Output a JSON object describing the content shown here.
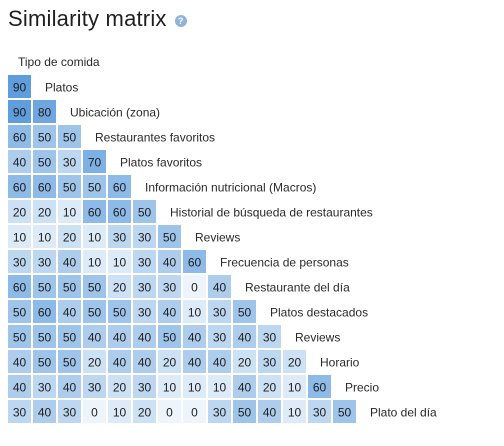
{
  "header": {
    "title": "Similarity matrix",
    "help_icon": "question-circle-icon"
  },
  "chart_data": {
    "type": "heatmap",
    "title": "Similarity matrix",
    "layout": "lower-triangular",
    "labels": [
      "Tipo de comida",
      "Platos",
      "Ubicación (zona)",
      "Restaurantes favoritos",
      "Platos favoritos",
      "Información nutricional (Macros)",
      "Historial de búsqueda de restaurantes",
      "Reviews",
      "Frecuencia de personas",
      "Restaurante del día",
      "Platos destacados",
      "Reviews",
      "Horario",
      "Precio",
      "Plato del día"
    ],
    "rows": [
      [
        90
      ],
      [
        90,
        80
      ],
      [
        60,
        50,
        50
      ],
      [
        40,
        50,
        30,
        70
      ],
      [
        60,
        60,
        50,
        50,
        60
      ],
      [
        20,
        20,
        10,
        60,
        60,
        50
      ],
      [
        10,
        10,
        20,
        10,
        30,
        30,
        50
      ],
      [
        30,
        30,
        40,
        10,
        10,
        30,
        40,
        60
      ],
      [
        60,
        50,
        50,
        50,
        20,
        30,
        30,
        0,
        40
      ],
      [
        50,
        60,
        40,
        50,
        50,
        30,
        40,
        10,
        30,
        50
      ],
      [
        50,
        50,
        50,
        40,
        40,
        40,
        50,
        40,
        30,
        40,
        30
      ],
      [
        40,
        50,
        50,
        20,
        40,
        40,
        20,
        40,
        40,
        20,
        30,
        20
      ],
      [
        40,
        30,
        40,
        30,
        20,
        30,
        10,
        10,
        10,
        40,
        20,
        10,
        60
      ],
      [
        30,
        40,
        30,
        0,
        10,
        20,
        0,
        0,
        30,
        50,
        40,
        10,
        30,
        50
      ]
    ],
    "value_range": [
      0,
      100
    ],
    "colors": {
      "low": "#edf4fb",
      "high": "#4f93d9"
    }
  }
}
